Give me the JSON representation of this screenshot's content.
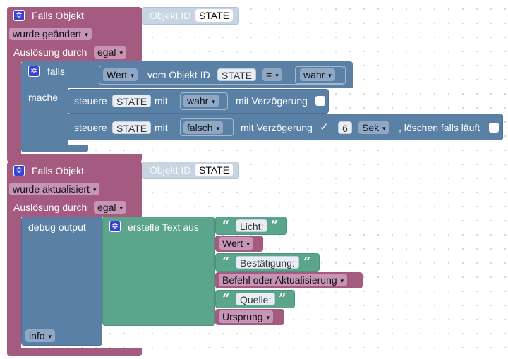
{
  "block1": {
    "title": "Falls Objekt",
    "object_label": "Objekt ID",
    "object_value": "STATE",
    "change_dropdown": "wurde geändert",
    "trigger_label": "Auslösung durch",
    "trigger_dropdown": "egal",
    "if_block": {
      "label": "falls",
      "do_label": "mache",
      "condition": {
        "property_dropdown": "Wert",
        "from_object_label": "vom Objekt ID",
        "object_value": "STATE",
        "operator": "=",
        "value_dropdown": "wahr"
      },
      "set_row_1": {
        "label": "steuere",
        "object_value": "STATE",
        "with_label": "mit",
        "value_dropdown": "wahr",
        "delay_label": "mit Verzögerung"
      },
      "set_row_2": {
        "label": "steuere",
        "object_value": "STATE",
        "with_label": "mit",
        "value_dropdown": "falsch",
        "delay_label": "mit Verzögerung",
        "delay_checkmark": "✓",
        "delay_value": "6",
        "unit_dropdown": "Sek",
        "clear_label": ", löschen falls läuft"
      }
    }
  },
  "block2": {
    "title": "Falls Objekt",
    "object_label": "Objekt ID",
    "object_value": "STATE",
    "change_dropdown": "wurde aktualisiert",
    "trigger_label": "Auslösung durch",
    "trigger_dropdown": "egal",
    "debug": {
      "label": "debug output",
      "level_dropdown": "info",
      "text_join": {
        "label": "erstelle Text aus",
        "items": [
          {
            "type": "text",
            "value": "Licht:"
          },
          {
            "type": "dropdown",
            "value": "Wert"
          },
          {
            "type": "text",
            "value": "Bestätigung:"
          },
          {
            "type": "dropdown",
            "value": "Befehl oder Aktualisierung"
          },
          {
            "type": "text",
            "value": "Quelle:"
          },
          {
            "type": "dropdown",
            "value": "Ursprung"
          }
        ]
      }
    }
  },
  "glyphs": {
    "gear": "✲",
    "arrow": "▾",
    "open_quote": "“",
    "close_quote": "”"
  },
  "colors": {
    "event_block": "#a55b80",
    "object_block": "#c7d4e2",
    "logic_block": "#5b80a5",
    "text_block": "#5ba58c",
    "gear": "#3a43d4"
  }
}
